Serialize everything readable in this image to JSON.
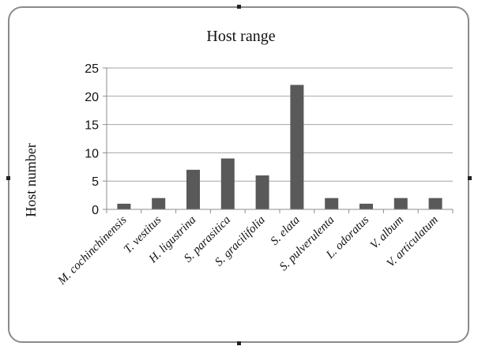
{
  "chart_data": {
    "type": "bar",
    "title": "Host range",
    "xlabel": "",
    "ylabel": "Host number",
    "ylim": [
      0,
      25
    ],
    "yticks": [
      0,
      5,
      10,
      15,
      20,
      25
    ],
    "grid": true,
    "categories": [
      "M. cochinchinensis",
      "T. vestitus",
      "H. ligustrina",
      "S. parasitica",
      "S. gracilifolia",
      "S. elata",
      "S. pulverulenta",
      "L. odoratus",
      "V. album",
      "V. articulatum"
    ],
    "values": [
      1,
      2,
      7,
      9,
      6,
      22,
      2,
      1,
      2,
      2
    ],
    "bar_color": "#595959",
    "grid_color": "#a6a6a6"
  }
}
